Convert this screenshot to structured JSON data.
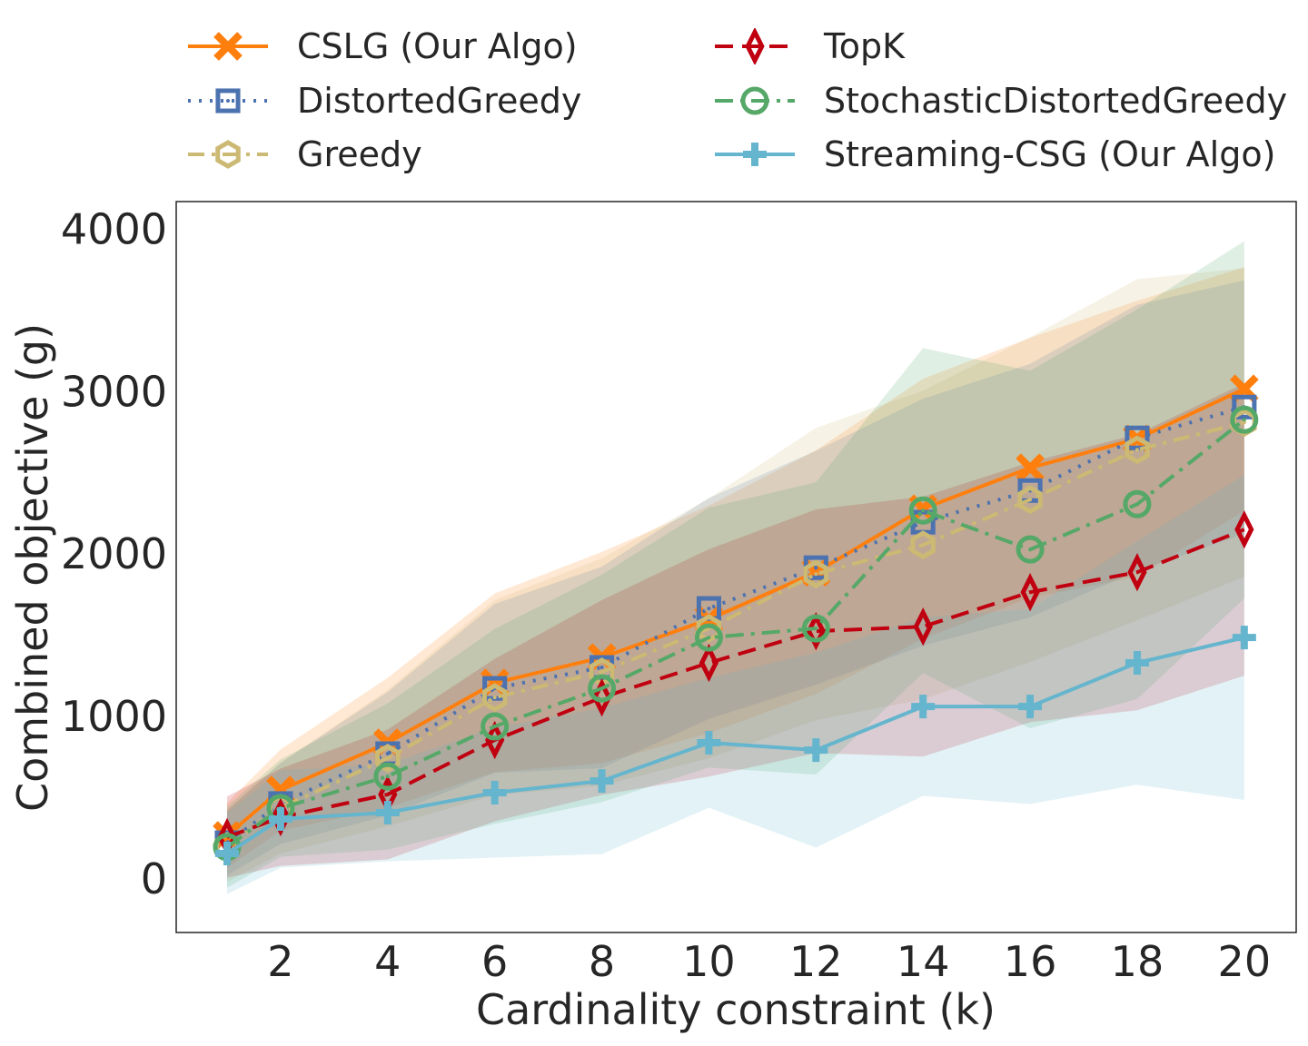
{
  "chart_data": {
    "type": "line",
    "title": "",
    "xlabel": "Cardinality constraint (k)",
    "ylabel": "Combined objective (g)",
    "xlim": [
      0.05,
      20.97
    ],
    "ylim": [
      -330,
      4170
    ],
    "xticks": [
      2,
      4,
      6,
      8,
      10,
      12,
      14,
      16,
      18,
      20
    ],
    "yticks": [
      0,
      1000,
      2000,
      3000,
      4000
    ],
    "grid": false,
    "legend_placement": "top",
    "x": [
      1,
      2,
      4,
      6,
      8,
      10,
      12,
      14,
      16,
      18,
      20
    ],
    "series": [
      {
        "name": "CSLG (Our Algo)",
        "color": "#ff7f0e",
        "marker": "x",
        "dash": "",
        "values": [
          268,
          547,
          838,
          1207,
          1363,
          1598,
          1888,
          2279,
          2531,
          2709,
          3017
        ],
        "std": [
          200,
          250,
          400,
          550,
          650,
          700,
          750,
          800,
          800,
          850,
          750
        ]
      },
      {
        "name": "DistortedGreedy",
        "color": "#4c72b0",
        "marker": "square",
        "dash": "3,9",
        "values": [
          223,
          464,
          771,
          1173,
          1302,
          1665,
          1916,
          2196,
          2391,
          2715,
          2905
        ],
        "std": [
          200,
          250,
          380,
          520,
          620,
          680,
          720,
          760,
          780,
          820,
          780
        ]
      },
      {
        "name": "Greedy",
        "color": "#ccb974",
        "marker": "hexagon",
        "dash": "18,8,4,8",
        "values": [
          201,
          436,
          743,
          1117,
          1274,
          1542,
          1877,
          2056,
          2335,
          2642,
          2810
        ],
        "std": [
          220,
          280,
          420,
          600,
          700,
          800,
          900,
          950,
          1000,
          1050,
          950
        ]
      },
      {
        "name": "TopK",
        "color": "#c00010",
        "marker": "diamond",
        "dash": "20,10",
        "values": [
          257,
          380,
          520,
          855,
          1117,
          1330,
          1525,
          1553,
          1765,
          1888,
          2151
        ],
        "std": [
          250,
          300,
          400,
          500,
          600,
          700,
          750,
          800,
          800,
          850,
          900
        ]
      },
      {
        "name": "StochasticDistortedGreedy",
        "color": "#55a868",
        "marker": "circle",
        "dash": "20,8,4,8",
        "values": [
          196,
          436,
          631,
          939,
          1173,
          1486,
          1542,
          2268,
          2028,
          2307,
          2827
        ],
        "std": [
          250,
          300,
          450,
          600,
          700,
          800,
          900,
          1000,
          1100,
          1200,
          1100
        ]
      },
      {
        "name": "Streaming-CSG (Our Algo)",
        "color": "#64b5cd",
        "marker": "plus",
        "dash": "",
        "values": [
          156,
          369,
          408,
          531,
          603,
          838,
          793,
          1061,
          1061,
          1330,
          1486
        ],
        "std": [
          250,
          300,
          300,
          400,
          450,
          400,
          600,
          550,
          600,
          750,
          1000
        ]
      }
    ]
  }
}
